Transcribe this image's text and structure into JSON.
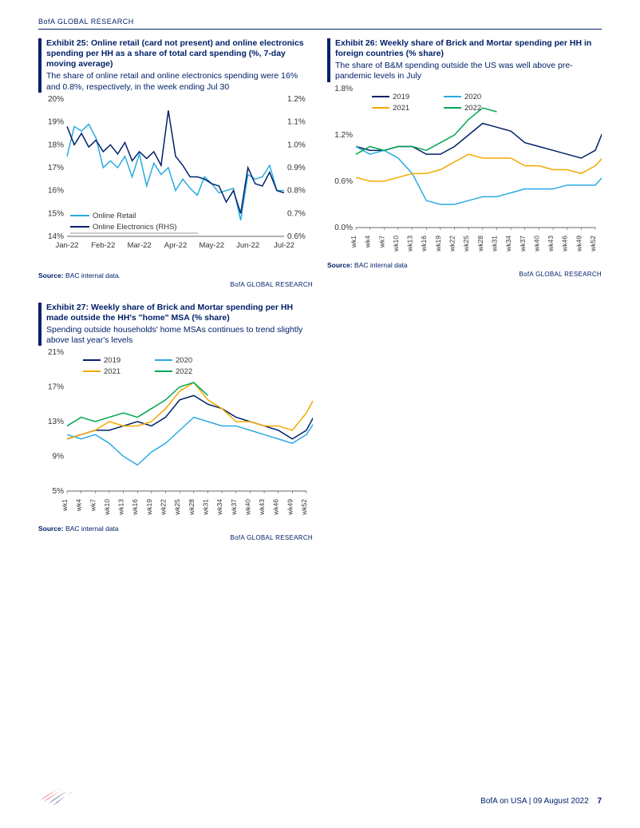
{
  "header": {
    "brand": "BofA GLOBAL RESEARCH"
  },
  "footer": {
    "left_brand": "BofA",
    "right_text": "BofA on USA | 09 August 2022",
    "page_number": "7"
  },
  "exhibits": {
    "e25": {
      "title": "Exhibit 25: Online retail (card not present) and online electronics spending per HH as a share of total card spending (%, 7-day moving average)",
      "subtitle": "The share of online retail and online electronics spending were 16% and 0.8%, respectively, in the week ending Jul 30",
      "source_label": "Source:",
      "source_text": "BAC internal data.",
      "brand_tag": "BofA GLOBAL RESEARCH",
      "chart": {
        "type": "line-dual-axis",
        "x_labels": [
          "Jan-22",
          "Feb-22",
          "Mar-22",
          "Apr-22",
          "May-22",
          "Jun-22",
          "Jul-22"
        ],
        "left_axis": {
          "min": 14,
          "max": 20,
          "step": 1,
          "suffix": "%"
        },
        "right_axis": {
          "min": 0.6,
          "max": 1.2,
          "step": 0.1,
          "suffix": "%"
        },
        "series": [
          {
            "name": "Online Retail",
            "color": "#29abe2",
            "axis": "left",
            "width": 1.5,
            "data": [
              17.5,
              18.8,
              18.6,
              18.9,
              18.3,
              17.0,
              17.3,
              17.0,
              17.5,
              16.6,
              17.6,
              16.2,
              17.2,
              16.7,
              17.0,
              16.0,
              16.5,
              16.1,
              15.8,
              16.6,
              16.3,
              15.9,
              16.0,
              16.1,
              14.7,
              16.7,
              16.5,
              16.6,
              17.1,
              16.0,
              16.0
            ]
          },
          {
            "name": "Online Electronics (RHS)",
            "color": "#012169",
            "axis": "right",
            "width": 1.5,
            "data": [
              1.08,
              1.0,
              1.05,
              0.99,
              1.02,
              0.97,
              1.0,
              0.96,
              1.01,
              0.93,
              0.97,
              0.94,
              0.97,
              0.91,
              1.15,
              0.95,
              0.91,
              0.86,
              0.86,
              0.85,
              0.83,
              0.82,
              0.75,
              0.8,
              0.7,
              0.9,
              0.83,
              0.82,
              0.88,
              0.8,
              0.79
            ]
          }
        ],
        "legend_pos": "bottom-left",
        "background": "#ffffff",
        "axis_color": "#333333",
        "label_fontsize": 10
      }
    },
    "e26": {
      "title": "Exhibit 26: Weekly share of Brick and Mortar spending per HH in foreign countries (% share)",
      "subtitle": "The share of B&M spending outside the US was well above pre-pandemic levels in July",
      "source_label": "Source:",
      "source_text": "BAC internal data",
      "brand_tag": "BofA GLOBAL RESEARCH",
      "chart": {
        "type": "line",
        "x_labels": [
          "wk1",
          "wk4",
          "wk7",
          "wk10",
          "wk13",
          "wk16",
          "wk19",
          "wk22",
          "wk25",
          "wk28",
          "wk31",
          "wk34",
          "wk37",
          "wk40",
          "wk43",
          "wk46",
          "wk49",
          "wk52"
        ],
        "y_axis": {
          "min": 0.0,
          "max": 1.8,
          "step": 0.6,
          "suffix": "%"
        },
        "series": [
          {
            "name": "2019",
            "color": "#012169",
            "width": 1.5,
            "data": [
              1.05,
              1.0,
              1.0,
              1.05,
              1.05,
              0.95,
              0.95,
              1.05,
              1.2,
              1.35,
              1.3,
              1.25,
              1.1,
              1.05,
              1.0,
              0.95,
              0.9,
              1.0,
              1.45
            ]
          },
          {
            "name": "2020",
            "color": "#29abe2",
            "width": 1.5,
            "data": [
              1.05,
              0.95,
              1.0,
              0.9,
              0.7,
              0.35,
              0.3,
              0.3,
              0.35,
              0.4,
              0.4,
              0.45,
              0.5,
              0.5,
              0.5,
              0.55,
              0.55,
              0.55,
              0.75
            ]
          },
          {
            "name": "2021",
            "color": "#f2a900",
            "width": 1.5,
            "data": [
              0.65,
              0.6,
              0.6,
              0.65,
              0.7,
              0.7,
              0.75,
              0.85,
              0.95,
              0.9,
              0.9,
              0.9,
              0.8,
              0.8,
              0.75,
              0.75,
              0.7,
              0.8,
              1.0
            ]
          },
          {
            "name": "2022",
            "color": "#00a651",
            "width": 1.5,
            "data": [
              0.95,
              1.05,
              1.0,
              1.05,
              1.05,
              1.0,
              1.1,
              1.2,
              1.4,
              1.55,
              1.5
            ]
          }
        ],
        "legend_pos": "top-inside",
        "background": "#ffffff",
        "axis_color": "#333333",
        "label_fontsize": 10
      }
    },
    "e27": {
      "title": "Exhibit 27: Weekly share of Brick and Mortar spending per HH made outside the HH's \"home\" MSA (% share)",
      "subtitle": "Spending outside households' home MSAs continues to trend slightly above last year's levels",
      "source_label": "Source:",
      "source_text": "BAC internal data",
      "brand_tag": "BofA GLOBAL RESEARCH",
      "chart": {
        "type": "line",
        "x_labels": [
          "wk1",
          "wk4",
          "wk7",
          "wk10",
          "wk13",
          "wk16",
          "wk19",
          "wk22",
          "wk25",
          "wk28",
          "wk31",
          "wk34",
          "wk37",
          "wk40",
          "wk43",
          "wk46",
          "wk49",
          "wk52"
        ],
        "y_axis": {
          "min": 5,
          "max": 21,
          "step": 4,
          "suffix": "%"
        },
        "series": [
          {
            "name": "2019",
            "color": "#012169",
            "width": 1.5,
            "data": [
              11.0,
              11.5,
              12.0,
              12.0,
              12.5,
              13.0,
              12.5,
              13.5,
              15.5,
              16.0,
              15.0,
              14.5,
              13.5,
              13.0,
              12.5,
              12.0,
              11.0,
              12.0,
              15.0
            ]
          },
          {
            "name": "2020",
            "color": "#29abe2",
            "width": 1.5,
            "data": [
              11.5,
              11.0,
              11.5,
              10.5,
              9.0,
              8.0,
              9.5,
              10.5,
              12.0,
              13.5,
              13.0,
              12.5,
              12.5,
              12.0,
              11.5,
              11.0,
              10.5,
              11.5,
              14.0
            ]
          },
          {
            "name": "2021",
            "color": "#f2a900",
            "width": 1.5,
            "data": [
              11.0,
              11.5,
              12.0,
              13.0,
              12.5,
              12.5,
              13.0,
              14.5,
              16.5,
              17.5,
              15.5,
              14.5,
              13.0,
              13.0,
              12.5,
              12.5,
              12.0,
              14.0,
              17.0
            ]
          },
          {
            "name": "2022",
            "color": "#00a651",
            "width": 1.5,
            "data": [
              12.5,
              13.5,
              13.0,
              13.5,
              14.0,
              13.5,
              14.5,
              15.5,
              17.0,
              17.5,
              16.0
            ]
          }
        ],
        "legend_pos": "top-inside",
        "background": "#ffffff",
        "axis_color": "#333333",
        "label_fontsize": 10
      }
    }
  }
}
